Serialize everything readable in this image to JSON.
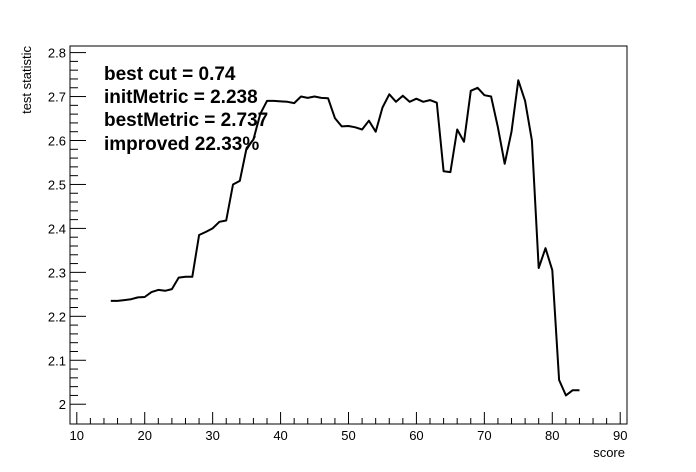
{
  "chart_data": {
    "type": "line",
    "title": "",
    "xlabel": "score",
    "ylabel": "test statistic",
    "xlim": [
      9,
      91
    ],
    "ylim": [
      1.955,
      2.815
    ],
    "x_ticks": [
      10,
      20,
      30,
      40,
      50,
      60,
      70,
      80,
      90
    ],
    "y_ticks": [
      2.0,
      2.1,
      2.2,
      2.3,
      2.4,
      2.5,
      2.6,
      2.7,
      2.8
    ],
    "x_tick_labels": [
      "10",
      "20",
      "30",
      "40",
      "50",
      "60",
      "70",
      "80",
      "90"
    ],
    "y_tick_labels": [
      "2",
      "2.1",
      "2.2",
      "2.3",
      "2.4",
      "2.5",
      "2.6",
      "2.7",
      "2.8"
    ],
    "grid": false,
    "annotations": [
      "best cut = 0.74",
      "initMetric = 2.238",
      "bestMetric = 2.737",
      "improved 22.33%"
    ],
    "series": [
      {
        "x": [
          15,
          16,
          17,
          18,
          19,
          20,
          21,
          22,
          23,
          24,
          25,
          26,
          27,
          28,
          29,
          30,
          31,
          32,
          33,
          34,
          35,
          36,
          37,
          38,
          39,
          40,
          41,
          42,
          43,
          44,
          45,
          46,
          47,
          48,
          49,
          50,
          51,
          52,
          53,
          54,
          55,
          56,
          57,
          58,
          59,
          60,
          61,
          62,
          63,
          64,
          65,
          66,
          67,
          68,
          69,
          70,
          71,
          72,
          73,
          74,
          75,
          76,
          77,
          78,
          79,
          80,
          81,
          82,
          83,
          84
        ],
        "y": [
          2.235,
          2.235,
          2.237,
          2.239,
          2.243,
          2.244,
          2.255,
          2.26,
          2.258,
          2.262,
          2.288,
          2.29,
          2.29,
          2.385,
          2.392,
          2.4,
          2.415,
          2.418,
          2.5,
          2.508,
          2.583,
          2.602,
          2.66,
          2.69,
          2.69,
          2.689,
          2.688,
          2.685,
          2.7,
          2.697,
          2.7,
          2.697,
          2.696,
          2.651,
          2.632,
          2.633,
          2.63,
          2.625,
          2.645,
          2.62,
          2.675,
          2.705,
          2.688,
          2.702,
          2.688,
          2.695,
          2.688,
          2.692,
          2.686,
          2.53,
          2.528,
          2.625,
          2.597,
          2.713,
          2.72,
          2.703,
          2.7,
          2.63,
          2.547,
          2.62,
          2.737,
          2.69,
          2.6,
          2.31,
          2.355,
          2.305,
          2.055,
          2.02,
          2.032,
          2.032
        ]
      }
    ]
  }
}
